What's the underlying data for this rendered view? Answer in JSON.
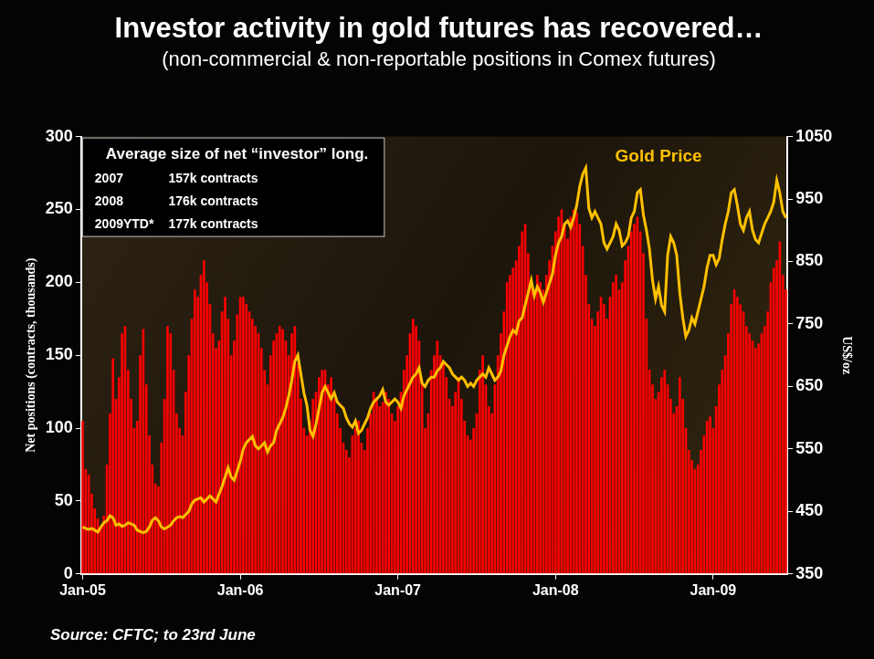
{
  "chart_data": {
    "type": "bar",
    "title": "Investor activity in gold futures has recovered…",
    "subtitle": "(non-commercial & non-reportable positions in Comex futures)",
    "y_label": "Net positions (contracts, thousands)",
    "y2_label": "US$/oz",
    "source": "Source: CFTC; to 23rd June",
    "annotations": {
      "heading": "Average size of net “investor” long.",
      "rows": [
        [
          "2007",
          "157k contracts"
        ],
        [
          "2008",
          "176k contracts"
        ],
        [
          "2009YTD*",
          "177k contracts"
        ]
      ]
    },
    "categories": [
      "Jan-05",
      null,
      null,
      null,
      null,
      null,
      null,
      null,
      null,
      null,
      null,
      null,
      null,
      null,
      null,
      null,
      null,
      null,
      null,
      null,
      null,
      null,
      null,
      null,
      null,
      null,
      null,
      null,
      null,
      null,
      null,
      null,
      null,
      null,
      null,
      null,
      null,
      null,
      null,
      null,
      null,
      null,
      null,
      null,
      null,
      null,
      null,
      null,
      null,
      null,
      null,
      null,
      "Jan-06",
      null,
      null,
      null,
      null,
      null,
      null,
      null,
      null,
      null,
      null,
      null,
      null,
      null,
      null,
      null,
      null,
      null,
      null,
      null,
      null,
      null,
      null,
      null,
      null,
      null,
      null,
      null,
      null,
      null,
      null,
      null,
      null,
      null,
      null,
      null,
      null,
      null,
      null,
      null,
      null,
      null,
      null,
      null,
      null,
      null,
      null,
      null,
      null,
      null,
      null,
      null,
      "Jan-07",
      null,
      null,
      null,
      null,
      null,
      null,
      null,
      null,
      null,
      null,
      null,
      null,
      null,
      null,
      null,
      null,
      null,
      null,
      null,
      null,
      null,
      null,
      null,
      null,
      null,
      null,
      null,
      null,
      null,
      null,
      null,
      null,
      null,
      null,
      null,
      null,
      null,
      null,
      null,
      null,
      null,
      null,
      null,
      null,
      null,
      null,
      null,
      null,
      null,
      null,
      null,
      "Jan-08",
      null,
      null,
      null,
      null,
      null,
      null,
      null,
      null,
      null,
      null,
      null,
      null,
      null,
      null,
      null,
      null,
      null,
      null,
      null,
      null,
      null,
      null,
      null,
      null,
      null,
      null,
      null,
      null,
      null,
      null,
      null,
      null,
      null,
      null,
      null,
      null,
      null,
      null,
      null,
      null,
      null,
      null,
      null,
      null,
      null,
      null,
      null,
      null,
      null,
      null,
      null,
      "Jan-09",
      null,
      null,
      null,
      null,
      null,
      null,
      null,
      null,
      null,
      null,
      null,
      null,
      null,
      null,
      null,
      null,
      null,
      null,
      null,
      null,
      null,
      null,
      null,
      null
    ],
    "series": [
      {
        "type": "bar",
        "color": "#ff0000",
        "values": [
          105,
          72,
          68,
          55,
          45,
          38,
          32,
          40,
          75,
          110,
          148,
          120,
          135,
          165,
          170,
          140,
          120,
          100,
          105,
          150,
          168,
          130,
          95,
          75,
          62,
          60,
          90,
          120,
          170,
          165,
          140,
          110,
          100,
          95,
          125,
          150,
          175,
          195,
          190,
          205,
          215,
          200,
          185,
          165,
          155,
          160,
          180,
          190,
          175,
          150,
          160,
          178,
          190,
          190,
          185,
          180,
          175,
          170,
          165,
          155,
          140,
          130,
          150,
          160,
          165,
          170,
          168,
          160,
          150,
          165,
          170,
          145,
          120,
          100,
          95,
          105,
          120,
          125,
          135,
          140,
          140,
          130,
          135,
          120,
          110,
          100,
          90,
          85,
          80,
          95,
          100,
          105,
          90,
          85,
          100,
          110,
          125,
          120,
          115,
          118,
          125,
          120,
          110,
          105,
          115,
          125,
          140,
          150,
          165,
          175,
          170,
          160,
          130,
          100,
          110,
          140,
          150,
          160,
          150,
          145,
          135,
          120,
          115,
          125,
          135,
          120,
          105,
          95,
          92,
          100,
          110,
          140,
          150,
          130,
          115,
          110,
          130,
          150,
          165,
          180,
          200,
          205,
          210,
          215,
          225,
          235,
          240,
          220,
          200,
          195,
          205,
          200,
          195,
          205,
          215,
          225,
          235,
          245,
          250,
          240,
          230,
          245,
          250,
          248,
          240,
          225,
          205,
          185,
          175,
          170,
          180,
          190,
          185,
          175,
          190,
          200,
          205,
          195,
          200,
          215,
          225,
          235,
          240,
          245,
          235,
          220,
          175,
          140,
          130,
          120,
          125,
          135,
          140,
          130,
          120,
          110,
          115,
          135,
          120,
          100,
          85,
          78,
          72,
          75,
          85,
          95,
          105,
          108,
          100,
          115,
          130,
          140,
          150,
          165,
          185,
          195,
          190,
          185,
          180,
          170,
          165,
          160,
          155,
          158,
          165,
          170,
          180,
          200,
          210,
          215,
          228,
          205,
          195
        ]
      },
      {
        "name": "Gold Price",
        "type": "line",
        "axis": "y2",
        "color": "#ffc000",
        "values": [
          425,
          423,
          421,
          423,
          420,
          417,
          425,
          432,
          435,
          443,
          440,
          428,
          430,
          426,
          428,
          432,
          430,
          428,
          420,
          418,
          416,
          418,
          425,
          436,
          440,
          435,
          425,
          422,
          425,
          428,
          435,
          440,
          442,
          440,
          445,
          450,
          462,
          468,
          470,
          472,
          465,
          470,
          475,
          470,
          465,
          478,
          490,
          505,
          520,
          505,
          500,
          515,
          530,
          550,
          560,
          565,
          570,
          555,
          550,
          555,
          560,
          545,
          555,
          560,
          580,
          590,
          600,
          615,
          635,
          660,
          690,
          700,
          670,
          640,
          620,
          580,
          570,
          590,
          615,
          640,
          650,
          640,
          630,
          640,
          625,
          620,
          615,
          600,
          590,
          585,
          595,
          575,
          580,
          590,
          600,
          615,
          625,
          630,
          635,
          645,
          625,
          620,
          625,
          630,
          625,
          615,
          635,
          645,
          655,
          665,
          670,
          680,
          655,
          650,
          660,
          665,
          665,
          675,
          680,
          690,
          685,
          680,
          670,
          665,
          660,
          665,
          660,
          650,
          655,
          650,
          660,
          665,
          670,
          665,
          680,
          670,
          660,
          665,
          675,
          700,
          715,
          730,
          740,
          735,
          755,
          760,
          780,
          800,
          820,
          795,
          810,
          800,
          785,
          800,
          815,
          830,
          860,
          880,
          890,
          910,
          915,
          905,
          920,
          940,
          970,
          990,
          1000,
          935,
          920,
          930,
          920,
          910,
          880,
          870,
          880,
          890,
          910,
          900,
          875,
          880,
          890,
          920,
          930,
          960,
          965,
          925,
          900,
          870,
          820,
          790,
          810,
          780,
          770,
          860,
          890,
          880,
          860,
          800,
          760,
          730,
          740,
          760,
          750,
          770,
          790,
          810,
          840,
          860,
          860,
          845,
          855,
          885,
          910,
          930,
          960,
          965,
          940,
          910,
          900,
          920,
          930,
          900,
          885,
          880,
          895,
          910,
          920,
          930,
          945,
          980,
          960,
          930,
          920
        ]
      }
    ],
    "ylim": [
      0,
      300
    ],
    "yticks": [
      0,
      50,
      100,
      150,
      200,
      250,
      300
    ],
    "y2lim": [
      350,
      1050
    ],
    "y2ticks": [
      350,
      450,
      550,
      650,
      750,
      850,
      950,
      1050
    ],
    "grid": false
  }
}
